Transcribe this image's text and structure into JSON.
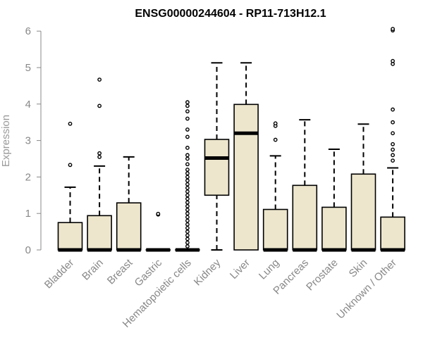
{
  "chart_data": {
    "type": "boxplot",
    "title": "ENSG00000244604 - RP11-713H12.1",
    "xlabel": "",
    "ylabel": "Expression",
    "ylim": [
      0,
      6
    ],
    "yticks": [
      "0",
      "1",
      "2",
      "3",
      "4",
      "5",
      "6"
    ],
    "grid": false,
    "legend": "none",
    "colors": {
      "box_fill": "#ede6cd",
      "stroke": "#000000",
      "tick_text": "#888888"
    },
    "categories": [
      "Bladder",
      "Brain",
      "Breast",
      "Gastric",
      "Hematopoietic cells",
      "Kidney",
      "Liver",
      "Lung",
      "Pancreas",
      "Prostate",
      "Skin",
      "Unknown / Other"
    ],
    "boxes": [
      {
        "q1": 0,
        "median": 0,
        "q3": 0.75,
        "whisker_low": 0,
        "whisker_high": 1.72,
        "outliers": [
          2.33,
          3.46
        ]
      },
      {
        "q1": 0,
        "median": 0,
        "q3": 0.94,
        "whisker_low": 0,
        "whisker_high": 2.3,
        "outliers": [
          2.55,
          2.65,
          3.95,
          4.67
        ]
      },
      {
        "q1": 0,
        "median": 0,
        "q3": 1.29,
        "whisker_low": 0,
        "whisker_high": 2.55,
        "outliers": []
      },
      {
        "q1": 0,
        "median": 0,
        "q3": 0,
        "whisker_low": 0,
        "whisker_high": 0,
        "outliers": [
          0.97,
          0.99
        ]
      },
      {
        "q1": 0,
        "median": 0,
        "q3": 0,
        "whisker_low": 0,
        "whisker_high": 0,
        "outliers": [
          0.1,
          0.2,
          0.3,
          0.4,
          0.5,
          0.6,
          0.7,
          0.8,
          0.9,
          1.0,
          1.1,
          1.2,
          1.3,
          1.4,
          1.5,
          1.6,
          1.7,
          1.8,
          1.9,
          2.0,
          2.1,
          2.2,
          2.35,
          2.5,
          2.6,
          2.8,
          3.1,
          3.3,
          3.6,
          3.8,
          3.95,
          4.05
        ]
      },
      {
        "q1": 1.5,
        "median": 2.52,
        "q3": 3.03,
        "whisker_low": 0,
        "whisker_high": 5.13,
        "outliers": []
      },
      {
        "q1": 0,
        "median": 3.2,
        "q3": 3.99,
        "whisker_low": 0,
        "whisker_high": 5.13,
        "outliers": []
      },
      {
        "q1": 0,
        "median": 0,
        "q3": 1.11,
        "whisker_low": 0,
        "whisker_high": 2.58,
        "outliers": [
          3.02,
          3.4,
          3.47
        ]
      },
      {
        "q1": 0,
        "median": 0,
        "q3": 1.77,
        "whisker_low": 0,
        "whisker_high": 3.57,
        "outliers": []
      },
      {
        "q1": 0,
        "median": 0,
        "q3": 1.17,
        "whisker_low": 0,
        "whisker_high": 2.76,
        "outliers": []
      },
      {
        "q1": 0,
        "median": 0,
        "q3": 2.08,
        "whisker_low": 0,
        "whisker_high": 3.45,
        "outliers": []
      },
      {
        "q1": 0,
        "median": 0,
        "q3": 0.9,
        "whisker_low": 0,
        "whisker_high": 2.25,
        "outliers": [
          2.45,
          2.6,
          2.75,
          2.9,
          3.2,
          3.5,
          3.85,
          5.1,
          5.18,
          6.02,
          6.06
        ]
      }
    ]
  }
}
